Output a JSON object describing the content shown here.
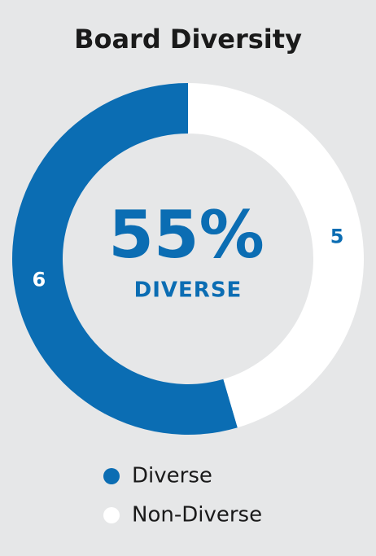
{
  "chart_data": {
    "type": "donut",
    "title": "Board Diversity",
    "categories": [
      "Diverse",
      "Non-Diverse"
    ],
    "values": [
      6,
      5
    ],
    "colors": [
      "#0b6db3",
      "#ffffff"
    ],
    "center_label": "55%",
    "center_sublabel": "DIVERSE"
  }
}
